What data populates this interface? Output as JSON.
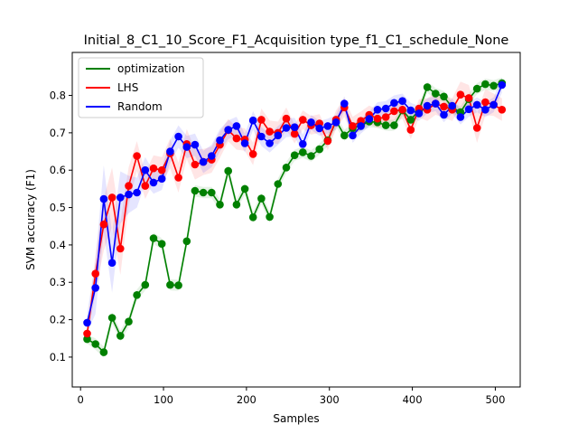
{
  "chart_data": {
    "type": "line",
    "title": "Initial_8_C1_10_Score_F1_Acquisition type_f1_C1_schedule_None",
    "xlabel": "Samples",
    "ylabel": "SVM accuracy (F1)",
    "xlim": [
      -10,
      530
    ],
    "ylim": [
      0.02,
      0.915
    ],
    "xticks": [
      0,
      100,
      200,
      300,
      400,
      500
    ],
    "yticks": [
      0.1,
      0.2,
      0.3,
      0.4,
      0.5,
      0.6,
      0.7,
      0.8
    ],
    "grid": false,
    "legend_position": "upper-left",
    "x": [
      8,
      18,
      28,
      38,
      48,
      58,
      68,
      78,
      88,
      98,
      108,
      118,
      128,
      138,
      148,
      158,
      168,
      178,
      188,
      198,
      208,
      218,
      228,
      238,
      248,
      258,
      268,
      278,
      288,
      298,
      308,
      318,
      328,
      338,
      348,
      358,
      368,
      378,
      388,
      398,
      408,
      418,
      428,
      438,
      448,
      458,
      468,
      478,
      488,
      498,
      508
    ],
    "series": [
      {
        "name": "optimization",
        "color": "#008000",
        "values": [
          0.148,
          0.135,
          0.113,
          0.205,
          0.157,
          0.195,
          0.266,
          0.293,
          0.418,
          0.403,
          0.293,
          0.292,
          0.41,
          0.545,
          0.54,
          0.54,
          0.508,
          0.598,
          0.508,
          0.55,
          0.474,
          0.524,
          0.475,
          0.563,
          0.607,
          0.64,
          0.648,
          0.638,
          0.656,
          0.68,
          0.732,
          0.693,
          0.712,
          0.72,
          0.73,
          0.728,
          0.72,
          0.72,
          0.76,
          0.735,
          0.76,
          0.822,
          0.805,
          0.797,
          0.768,
          0.755,
          0.79,
          0.818,
          0.83,
          0.826,
          0.833
        ],
        "band": [
          0.012,
          0.015,
          0.015,
          0.015,
          0.015,
          0.015,
          0.015,
          0.015,
          0.015,
          0.015,
          0.015,
          0.015,
          0.015,
          0.015,
          0.015,
          0.015,
          0.015,
          0.015,
          0.015,
          0.015,
          0.015,
          0.015,
          0.015,
          0.015,
          0.015,
          0.015,
          0.015,
          0.015,
          0.015,
          0.015,
          0.015,
          0.015,
          0.015,
          0.015,
          0.015,
          0.015,
          0.015,
          0.015,
          0.015,
          0.015,
          0.015,
          0.015,
          0.015,
          0.015,
          0.015,
          0.015,
          0.015,
          0.015,
          0.015,
          0.015,
          0.015
        ]
      },
      {
        "name": "LHS",
        "color": "#ff0000",
        "values": [
          0.163,
          0.323,
          0.455,
          0.527,
          0.39,
          0.558,
          0.638,
          0.558,
          0.605,
          0.6,
          0.645,
          0.58,
          0.67,
          0.615,
          0.622,
          0.628,
          0.668,
          0.707,
          0.685,
          0.682,
          0.643,
          0.735,
          0.703,
          0.7,
          0.738,
          0.697,
          0.735,
          0.72,
          0.725,
          0.678,
          0.735,
          0.768,
          0.718,
          0.732,
          0.748,
          0.738,
          0.742,
          0.758,
          0.762,
          0.708,
          0.765,
          0.762,
          0.778,
          0.77,
          0.762,
          0.802,
          0.793,
          0.713,
          0.782,
          0.775,
          0.762
        ],
        "band": [
          0.02,
          0.05,
          0.07,
          0.08,
          0.07,
          0.05,
          0.04,
          0.035,
          0.035,
          0.035,
          0.04,
          0.04,
          0.04,
          0.04,
          0.035,
          0.035,
          0.035,
          0.03,
          0.03,
          0.03,
          0.03,
          0.03,
          0.03,
          0.03,
          0.03,
          0.025,
          0.025,
          0.025,
          0.025,
          0.025,
          0.025,
          0.025,
          0.025,
          0.025,
          0.025,
          0.025,
          0.025,
          0.025,
          0.025,
          0.025,
          0.025,
          0.03,
          0.03,
          0.03,
          0.03,
          0.035,
          0.035,
          0.04,
          0.035,
          0.03,
          0.03
        ]
      },
      {
        "name": "Random",
        "color": "#0000ff",
        "values": [
          0.192,
          0.285,
          0.523,
          0.352,
          0.527,
          0.535,
          0.54,
          0.6,
          0.567,
          0.577,
          0.65,
          0.69,
          0.662,
          0.668,
          0.622,
          0.638,
          0.68,
          0.708,
          0.718,
          0.672,
          0.733,
          0.69,
          0.672,
          0.693,
          0.713,
          0.715,
          0.67,
          0.728,
          0.712,
          0.718,
          0.728,
          0.778,
          0.693,
          0.718,
          0.737,
          0.762,
          0.765,
          0.78,
          0.785,
          0.76,
          0.752,
          0.772,
          0.778,
          0.748,
          0.772,
          0.742,
          0.763,
          0.775,
          0.762,
          0.775,
          0.828
        ],
        "band": [
          0.025,
          0.07,
          0.09,
          0.08,
          0.07,
          0.05,
          0.04,
          0.035,
          0.03,
          0.03,
          0.03,
          0.03,
          0.03,
          0.03,
          0.03,
          0.03,
          0.03,
          0.025,
          0.025,
          0.025,
          0.025,
          0.025,
          0.025,
          0.025,
          0.025,
          0.025,
          0.025,
          0.02,
          0.02,
          0.02,
          0.02,
          0.02,
          0.02,
          0.02,
          0.02,
          0.02,
          0.02,
          0.02,
          0.02,
          0.02,
          0.02,
          0.02,
          0.02,
          0.02,
          0.02,
          0.02,
          0.02,
          0.02,
          0.02,
          0.02,
          0.02
        ]
      }
    ]
  }
}
